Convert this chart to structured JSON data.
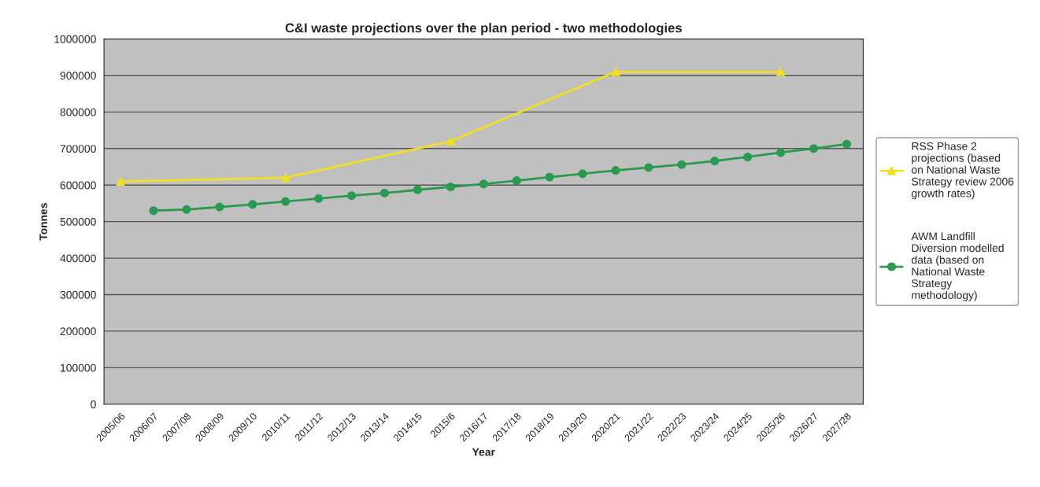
{
  "chart_data": {
    "type": "line",
    "title": "C&I waste projections over the plan period - two methodologies",
    "xlabel": "Year",
    "ylabel": "Tonnes",
    "categories": [
      "2005/06",
      "2006/07",
      "2007/08",
      "2008/09",
      "2009/10",
      "2010/11",
      "2011/12",
      "2012/13",
      "2013/14",
      "2014/15",
      "2015/6",
      "2016/17",
      "2017/18",
      "2018/19",
      "2019/20",
      "2020/21",
      "2021/22",
      "2022/23",
      "2023/24",
      "2024/25",
      "2025/26",
      "2026/27",
      "2027/28"
    ],
    "series": [
      {
        "name": "RSS Phase 2 projections (based on National Waste Strategy review 2006 growth rates)",
        "color": "#f0e020",
        "marker": "triangle",
        "values": [
          610000,
          null,
          null,
          null,
          null,
          620000,
          null,
          null,
          null,
          null,
          720000,
          null,
          null,
          null,
          null,
          910000,
          null,
          null,
          null,
          null,
          910000,
          null,
          null
        ]
      },
      {
        "name": "AWM Landfill Diversion modelled data (based on National Waste Strategy methodology)",
        "color": "#2a9a50",
        "marker": "circle",
        "values": [
          null,
          530000,
          533000,
          540000,
          547000,
          555000,
          563000,
          571000,
          578000,
          587000,
          595000,
          603000,
          612000,
          622000,
          631000,
          640000,
          648000,
          656000,
          666000,
          677000,
          689000,
          700000,
          712000
        ]
      }
    ],
    "ylim": [
      0,
      1000000
    ],
    "yticks": [
      0,
      100000,
      200000,
      300000,
      400000,
      500000,
      600000,
      700000,
      800000,
      900000,
      1000000
    ],
    "grid": "y",
    "legend": "right"
  }
}
